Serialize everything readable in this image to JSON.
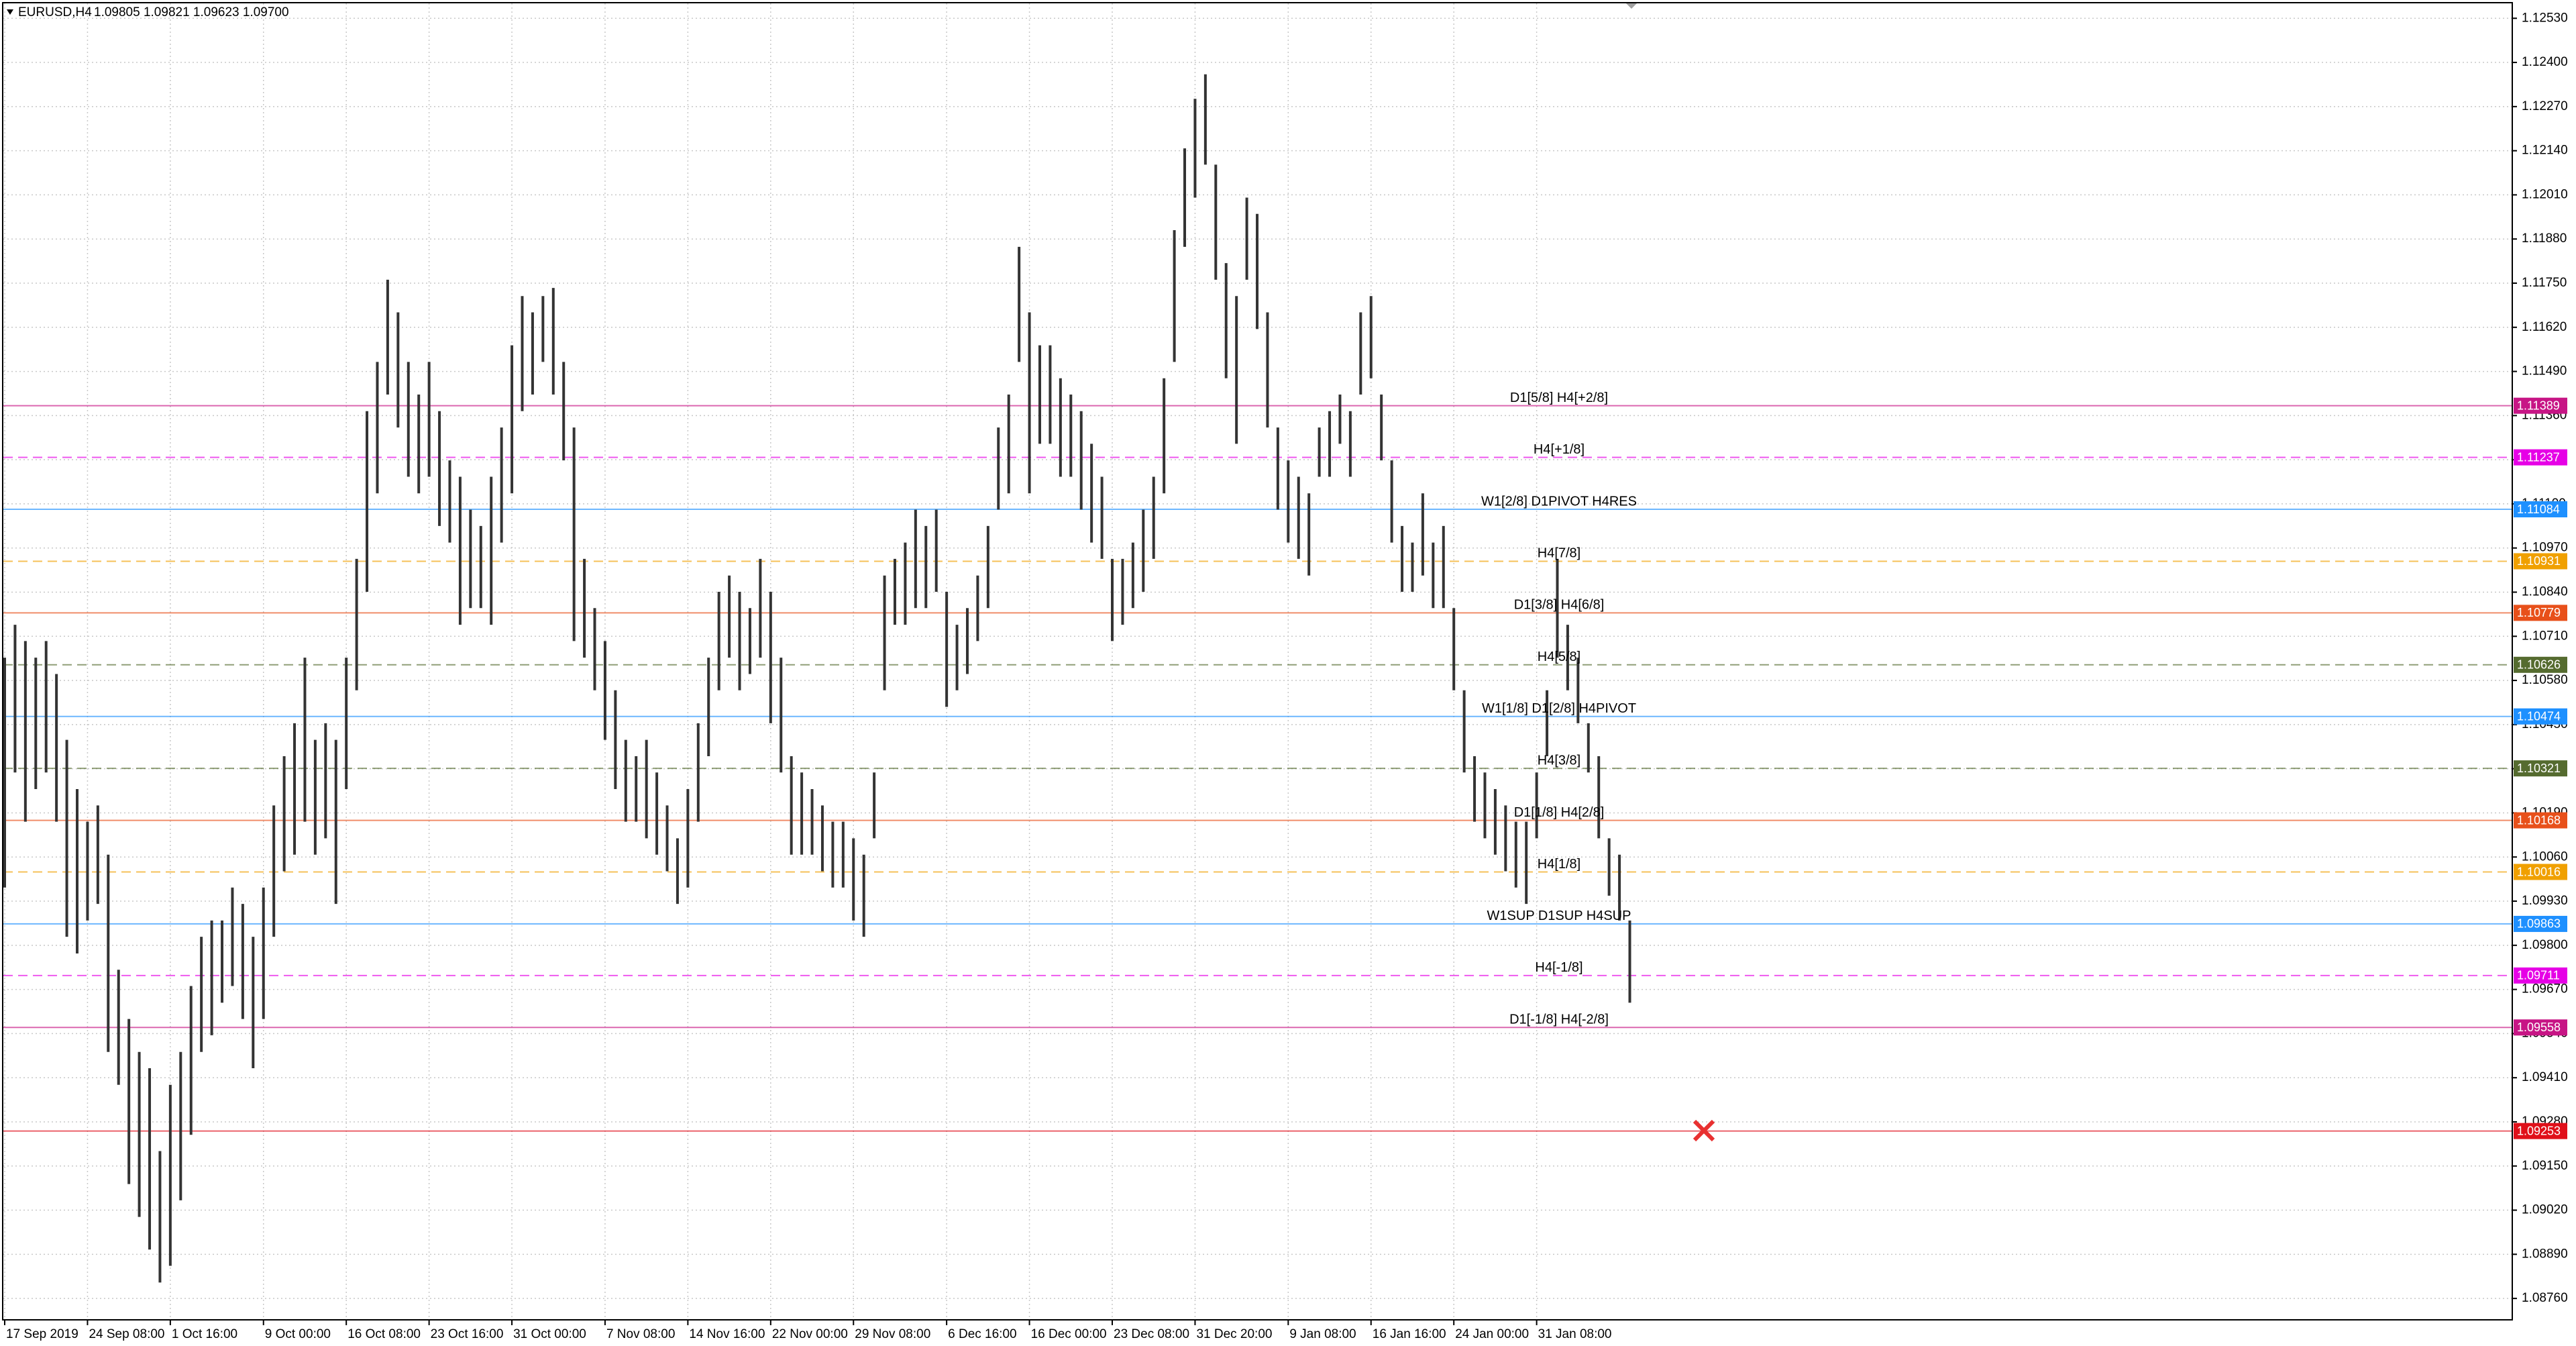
{
  "chart_data": {
    "type": "ohlc",
    "title": "EURUSD,H4",
    "quote": "1.09805 1.09821 1.09623 1.09700",
    "color": "#333333",
    "grid": true,
    "ylim": [
      1.08697,
      1.12574
    ],
    "yticks": [
      {
        "value": 1.1253,
        "label": "1.12530"
      },
      {
        "value": 1.124,
        "label": "1.12400"
      },
      {
        "value": 1.1227,
        "label": "1.12270"
      },
      {
        "value": 1.1214,
        "label": "1.12140"
      },
      {
        "value": 1.1201,
        "label": "1.12010"
      },
      {
        "value": 1.1188,
        "label": "1.11880"
      },
      {
        "value": 1.1175,
        "label": "1.11750"
      },
      {
        "value": 1.1162,
        "label": "1.11620"
      },
      {
        "value": 1.1149,
        "label": "1.11490"
      },
      {
        "value": 1.1136,
        "label": "1.11360"
      },
      {
        "value": 1.1123,
        "label": "1.11230"
      },
      {
        "value": 1.111,
        "label": "1.11100"
      },
      {
        "value": 1.1097,
        "label": "1.10970"
      },
      {
        "value": 1.1084,
        "label": "1.10840"
      },
      {
        "value": 1.1071,
        "label": "1.10710"
      },
      {
        "value": 1.1058,
        "label": "1.10580"
      },
      {
        "value": 1.1045,
        "label": "1.10450"
      },
      {
        "value": 1.1032,
        "label": "1.10320"
      },
      {
        "value": 1.1019,
        "label": "1.10190"
      },
      {
        "value": 1.1006,
        "label": "1.10060"
      },
      {
        "value": 1.0993,
        "label": "1.09930"
      },
      {
        "value": 1.098,
        "label": "1.09800"
      },
      {
        "value": 1.0967,
        "label": "1.09670"
      },
      {
        "value": 1.0954,
        "label": "1.09540"
      },
      {
        "value": 1.0941,
        "label": "1.09410"
      },
      {
        "value": 1.0928,
        "label": "1.09280"
      },
      {
        "value": 1.0915,
        "label": "1.09150"
      },
      {
        "value": 1.0902,
        "label": "1.09020"
      },
      {
        "value": 1.0889,
        "label": "1.08890"
      },
      {
        "value": 1.0876,
        "label": "1.08760"
      }
    ],
    "categories": [
      "17 Sep 2019",
      null,
      null,
      null,
      null,
      null,
      null,
      null,
      "24 Sep 08:00",
      null,
      null,
      null,
      null,
      null,
      null,
      null,
      "1 Oct 16:00",
      null,
      null,
      null,
      null,
      null,
      null,
      null,
      null,
      "9 Oct 00:00",
      null,
      null,
      null,
      null,
      null,
      null,
      null,
      "16 Oct 08:00",
      null,
      null,
      null,
      null,
      null,
      null,
      null,
      "23 Oct 16:00",
      null,
      null,
      null,
      null,
      null,
      null,
      null,
      "31 Oct 00:00",
      null,
      null,
      null,
      null,
      null,
      null,
      null,
      null,
      "7 Nov 08:00",
      null,
      null,
      null,
      null,
      null,
      null,
      null,
      "14 Nov 16:00",
      null,
      null,
      null,
      null,
      null,
      null,
      null,
      "22 Nov 00:00",
      null,
      null,
      null,
      null,
      null,
      null,
      null,
      "29 Nov 08:00",
      null,
      null,
      null,
      null,
      null,
      null,
      null,
      null,
      "6 Dec 16:00",
      null,
      null,
      null,
      null,
      null,
      null,
      null,
      "16 Dec 00:00",
      null,
      null,
      null,
      null,
      null,
      null,
      null,
      "23 Dec 08:00",
      null,
      null,
      null,
      null,
      null,
      null,
      null,
      "31 Dec 20:00",
      null,
      null,
      null,
      null,
      null,
      null,
      null,
      null,
      "9 Jan 08:00",
      null,
      null,
      null,
      null,
      null,
      null,
      null,
      "16 Jan 16:00",
      null,
      null,
      null,
      null,
      null,
      null,
      null,
      "24 Jan 00:00",
      null,
      null,
      null,
      null,
      null,
      null,
      null,
      "31 Jan 08:00",
      null,
      null,
      null,
      null,
      null,
      null,
      null,
      null,
      null
    ],
    "high": [
      1.10647,
      1.10744,
      1.10696,
      1.10647,
      1.10696,
      1.10599,
      1.10405,
      1.1026,
      1.10164,
      1.10212,
      1.10067,
      1.09728,
      1.09583,
      1.09486,
      1.09438,
      1.09194,
      1.09389,
      1.09486,
      1.0968,
      1.09825,
      1.09873,
      1.09873,
      1.0997,
      1.09922,
      1.09825,
      1.0997,
      1.10212,
      1.10357,
      1.10454,
      1.10647,
      1.10405,
      1.10454,
      1.10405,
      1.10647,
      1.10938,
      1.11373,
      1.11518,
      1.1176,
      1.11664,
      1.11518,
      1.11422,
      1.11518,
      1.11373,
      1.11228,
      1.1118,
      1.11083,
      1.11035,
      1.1118,
      1.11325,
      1.11567,
      1.11712,
      1.11664,
      1.11712,
      1.11736,
      1.11518,
      1.11325,
      1.10938,
      1.10793,
      1.10696,
      1.10551,
      1.10405,
      1.10357,
      1.10405,
      1.10309,
      1.10212,
      1.10115,
      1.1026,
      1.10454,
      1.10647,
      1.10841,
      1.10889,
      1.10841,
      1.10793,
      1.10938,
      1.10841,
      1.10647,
      1.10357,
      1.10309,
      1.1026,
      1.10212,
      1.10164,
      1.10164,
      1.10115,
      1.10067,
      1.10309,
      1.10889,
      1.10938,
      1.10986,
      1.11083,
      1.11035,
      1.11083,
      1.10841,
      1.10744,
      1.10793,
      1.10889,
      1.11035,
      1.11325,
      1.11422,
      1.11857,
      1.11664,
      1.11567,
      1.11567,
      1.1147,
      1.11422,
      1.11373,
      1.11277,
      1.1118,
      1.10938,
      1.10938,
      1.10986,
      1.11083,
      1.1118,
      1.1147,
      1.11906,
      1.12147,
      1.12293,
      1.12365,
      1.12099,
      1.11809,
      1.11712,
      1.12002,
      1.11954,
      1.11664,
      1.11325,
      1.11228,
      1.1118,
      1.11131,
      1.11325,
      1.11373,
      1.11422,
      1.11373,
      1.11664,
      1.11712,
      1.11422,
      1.11228,
      1.11035,
      1.10986,
      1.11131,
      1.10986,
      1.11035,
      1.10793,
      1.10551,
      1.10357,
      1.10309,
      1.1026,
      1.10212,
      1.10164,
      1.10164,
      1.10309,
      1.10551,
      1.10938,
      1.10744,
      1.10647,
      1.10454,
      1.10357,
      1.10115,
      1.10067,
      1.09873
    ],
    "low": [
      1.0997,
      1.10309,
      1.10164,
      1.1026,
      1.10309,
      1.10164,
      1.09825,
      1.09776,
      1.09873,
      1.09922,
      1.09486,
      1.09389,
      1.09097,
      1.09,
      1.08904,
      1.08807,
      1.08856,
      1.09049,
      1.09242,
      1.09486,
      1.09535,
      1.09631,
      1.0968,
      1.09583,
      1.09438,
      1.09583,
      1.09825,
      1.10018,
      1.10067,
      1.10164,
      1.10067,
      1.10115,
      1.09922,
      1.1026,
      1.10551,
      1.10841,
      1.11131,
      1.11422,
      1.11325,
      1.1118,
      1.11131,
      1.1118,
      1.11035,
      1.10986,
      1.10744,
      1.10793,
      1.10793,
      1.10744,
      1.10986,
      1.11131,
      1.11373,
      1.11422,
      1.11518,
      1.11422,
      1.11228,
      1.10696,
      1.10647,
      1.10551,
      1.10405,
      1.1026,
      1.10164,
      1.10164,
      1.10115,
      1.10067,
      1.10018,
      1.09922,
      1.0997,
      1.10164,
      1.10357,
      1.10551,
      1.10647,
      1.10551,
      1.10599,
      1.10647,
      1.10454,
      1.10309,
      1.10067,
      1.10067,
      1.10067,
      1.10018,
      1.0997,
      1.0997,
      1.09873,
      1.09825,
      1.10115,
      1.10551,
      1.10744,
      1.10744,
      1.10793,
      1.10793,
      1.10841,
      1.10502,
      1.10551,
      1.10599,
      1.10696,
      1.10793,
      1.11083,
      1.11131,
      1.11518,
      1.11131,
      1.11277,
      1.11277,
      1.1118,
      1.1118,
      1.11083,
      1.10986,
      1.10938,
      1.10696,
      1.10744,
      1.10793,
      1.10841,
      1.10938,
      1.11131,
      1.11518,
      1.11857,
      1.12002,
      1.12099,
      1.1176,
      1.1147,
      1.11277,
      1.1176,
      1.11615,
      1.11325,
      1.11083,
      1.10986,
      1.10938,
      1.10889,
      1.1118,
      1.1118,
      1.11277,
      1.1118,
      1.11422,
      1.1147,
      1.11228,
      1.10986,
      1.10841,
      1.10841,
      1.10889,
      1.10793,
      1.10793,
      1.10551,
      1.10309,
      1.10164,
      1.10115,
      1.10067,
      1.10018,
      1.0997,
      1.09922,
      1.10115,
      1.10357,
      1.10647,
      1.10551,
      1.10454,
      1.10309,
      1.10115,
      1.09946,
      1.09873,
      1.09631
    ],
    "levels": [
      {
        "value": 1.11389,
        "text": "D1[5/8] H4[+2/8]",
        "color": "#c71585",
        "dash": false
      },
      {
        "value": 1.11237,
        "text": "H4[+1/8]",
        "color": "#e600e6",
        "dash": true
      },
      {
        "value": 1.11084,
        "text": "W1[2/8] D1PIVOT H4RES",
        "color": "#1e90ff",
        "dash": false
      },
      {
        "value": 1.10931,
        "text": "H4[7/8]",
        "color": "#f0a000",
        "dash": true
      },
      {
        "value": 1.10779,
        "text": "D1[3/8] H4[6/8]",
        "color": "#e8501a",
        "dash": false
      },
      {
        "value": 1.10626,
        "text": "H4[5/8]",
        "color": "#556b2f",
        "dash": true
      },
      {
        "value": 1.10474,
        "text": "W1[1/8] D1[2/8] H4PIVOT",
        "color": "#1e90ff",
        "dash": false
      },
      {
        "value": 1.10321,
        "text": "H4[3/8]",
        "color": "#556b2f",
        "dash": true
      },
      {
        "value": 1.10168,
        "text": "D1[1/8] H4[2/8]",
        "color": "#e8501a",
        "dash": false
      },
      {
        "value": 1.10016,
        "text": "H4[1/8]",
        "color": "#f0a000",
        "dash": true
      },
      {
        "value": 1.09863,
        "text": "W1SUP D1SUP H4SUP",
        "color": "#1e90ff",
        "dash": false
      },
      {
        "value": 1.09711,
        "text": "H4[-1/8]",
        "color": "#e600e6",
        "dash": true
      },
      {
        "value": 1.09558,
        "text": "D1[-1/8] H4[-2/8]",
        "color": "#c71585",
        "dash": false
      },
      {
        "value": 1.09253,
        "color": "#e0101a",
        "dash": false
      }
    ]
  }
}
